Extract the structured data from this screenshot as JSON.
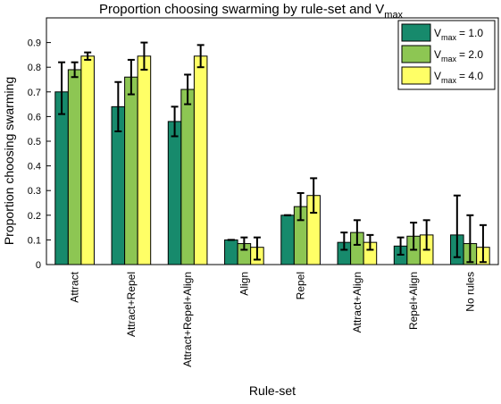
{
  "chart_data": {
    "type": "bar",
    "title": "Proportion choosing swarming by rule-set and V",
    "title_subscript": "max",
    "xlabel": "Rule-set",
    "ylabel": "Proportion choosing swarming",
    "ylim": [
      0,
      1.0
    ],
    "yticks": [
      "0",
      "0.1",
      "0.2",
      "0.3",
      "0.4",
      "0.5",
      "0.6",
      "0.7",
      "0.8",
      "0.9"
    ],
    "ytick_values": [
      0,
      0.1,
      0.2,
      0.3,
      0.4,
      0.5,
      0.6,
      0.7,
      0.8,
      0.9
    ],
    "grid": false,
    "legend_position": "top-right",
    "categories": [
      "Attract",
      "Attract+Repel",
      "Attract+Repel+Align",
      "Align",
      "Repel",
      "Attract+Align",
      "Repel+Align",
      "No rules"
    ],
    "series": [
      {
        "legend_main": "V",
        "legend_sub": "max",
        "legend_value": "= 1.0",
        "color": "#178a6c",
        "values": [
          0.7,
          0.64,
          0.58,
          0.1,
          0.2,
          0.09,
          0.075,
          0.12
        ],
        "err_low": [
          0.61,
          0.54,
          0.52,
          0.1,
          0.2,
          0.06,
          0.04,
          0.03
        ],
        "err_high": [
          0.82,
          0.74,
          0.64,
          0.1,
          0.2,
          0.13,
          0.11,
          0.28
        ]
      },
      {
        "legend_main": "V",
        "legend_sub": "max",
        "legend_value": "= 2.0",
        "color": "#8dc653",
        "values": [
          0.79,
          0.76,
          0.71,
          0.085,
          0.235,
          0.13,
          0.115,
          0.085
        ],
        "err_low": [
          0.76,
          0.69,
          0.65,
          0.06,
          0.18,
          0.08,
          0.06,
          0.01
        ],
        "err_high": [
          0.82,
          0.83,
          0.77,
          0.11,
          0.29,
          0.18,
          0.17,
          0.2
        ]
      },
      {
        "legend_main": "V",
        "legend_sub": "max",
        "legend_value": "= 4.0",
        "color": "#ffff66",
        "values": [
          0.845,
          0.845,
          0.845,
          0.07,
          0.28,
          0.09,
          0.12,
          0.07
        ],
        "err_low": [
          0.83,
          0.79,
          0.8,
          0.02,
          0.21,
          0.06,
          0.06,
          0.01
        ],
        "err_high": [
          0.86,
          0.9,
          0.89,
          0.11,
          0.35,
          0.12,
          0.18,
          0.16
        ]
      }
    ]
  }
}
